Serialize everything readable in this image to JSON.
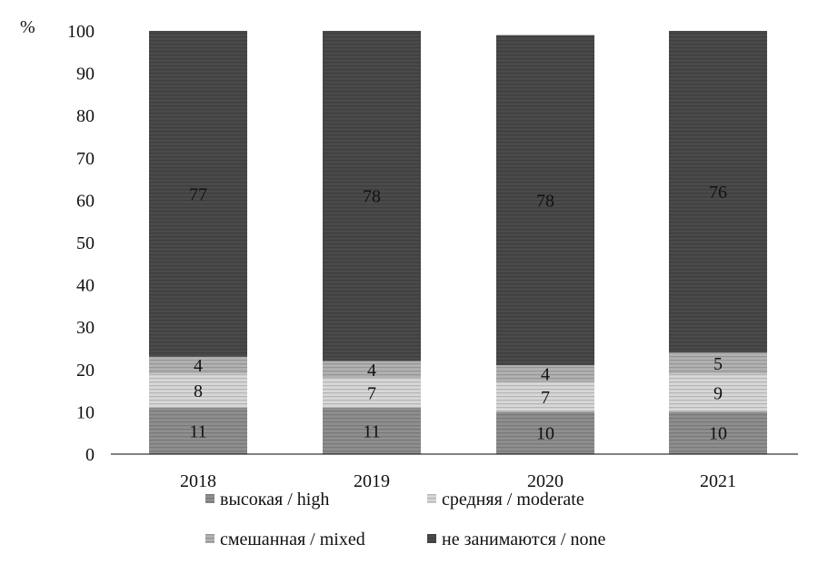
{
  "chart_data": {
    "type": "bar",
    "stacked": true,
    "ylabel": "%",
    "ylim": [
      0,
      100
    ],
    "yticks": [
      "0",
      "10",
      "20",
      "30",
      "40",
      "50",
      "60",
      "70",
      "80",
      "90",
      "100"
    ],
    "categories": [
      "2018",
      "2019",
      "2020",
      "2021"
    ],
    "series": [
      {
        "name": "высокая / high",
        "values": [
          11,
          11,
          10,
          10
        ],
        "color": "#8f8f8f"
      },
      {
        "name": "средняя / moderate",
        "values": [
          8,
          7,
          7,
          9
        ],
        "color": "#d8d8d8"
      },
      {
        "name": "смешанная / mixed",
        "values": [
          4,
          4,
          4,
          5
        ],
        "color": "#b2b2b2"
      },
      {
        "name": "не занимаются / none",
        "values": [
          77,
          78,
          78,
          76
        ],
        "color": "#4a4a4a"
      }
    ],
    "legend_position": "bottom",
    "grid": false
  }
}
